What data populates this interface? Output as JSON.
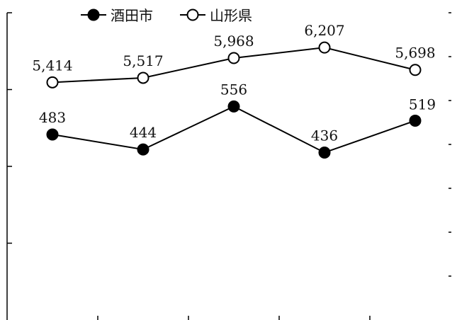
{
  "chart_data": {
    "type": "line",
    "title": "",
    "xlabel": "",
    "ylabel": "",
    "grid": false,
    "legend_position": "top-left",
    "x": [
      "",
      "",
      "",
      "",
      ""
    ],
    "series": [
      {
        "name": "酒田市",
        "axis": "left",
        "marker": "filled-circle",
        "values": [
          483,
          444,
          556,
          436,
          519
        ],
        "labels": [
          "483",
          "444",
          "556",
          "436",
          "519"
        ]
      },
      {
        "name": "山形県",
        "axis": "right",
        "marker": "open-circle",
        "values": [
          5414,
          5517,
          5968,
          6207,
          5698
        ],
        "labels": [
          "5,414",
          "5,517",
          "5,968",
          "6,207",
          "5,698"
        ]
      }
    ],
    "left_axis": {
      "ylim": [
        0,
        800
      ],
      "tick_labels_visible": false
    },
    "right_axis": {
      "ylim": [
        0,
        7000
      ],
      "tick_labels_visible": false
    },
    "colors": {
      "line": "#000000",
      "marker_fill_filled": "#000000",
      "marker_fill_open": "#ffffff",
      "axis": "#000000"
    }
  }
}
